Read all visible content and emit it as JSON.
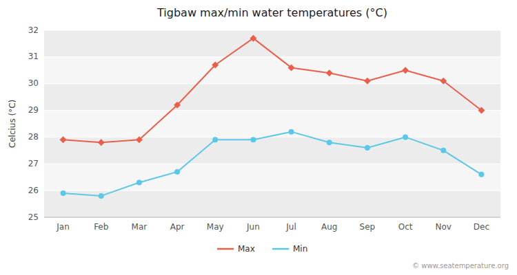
{
  "chart_data": {
    "type": "line",
    "title": "Tigbaw max/min water temperatures (°C)",
    "y_label": "Celcius (°C)",
    "categories": [
      "Jan",
      "Feb",
      "Mar",
      "Apr",
      "May",
      "Jun",
      "Jul",
      "Aug",
      "Sep",
      "Oct",
      "Nov",
      "Dec"
    ],
    "series": [
      {
        "name": "Max",
        "color": "#e8604c",
        "marker": "diamond",
        "line_style": "solid",
        "values": [
          27.9,
          27.8,
          27.9,
          29.2,
          30.7,
          31.7,
          30.6,
          30.4,
          30.1,
          30.5,
          30.1,
          29.0
        ]
      },
      {
        "name": "Min",
        "color": "#5bc8e8",
        "marker": "circle",
        "line_style": "solid",
        "values": [
          25.9,
          25.8,
          26.3,
          26.7,
          27.9,
          27.9,
          28.2,
          27.8,
          27.6,
          28.0,
          27.5,
          26.6
        ]
      }
    ],
    "ylim": [
      25,
      32
    ],
    "yticks": [
      25,
      26,
      27,
      28,
      29,
      30,
      31,
      32
    ],
    "grid": true,
    "legend": "bottom",
    "annotations": [
      "© www.seatemperature.org"
    ]
  }
}
